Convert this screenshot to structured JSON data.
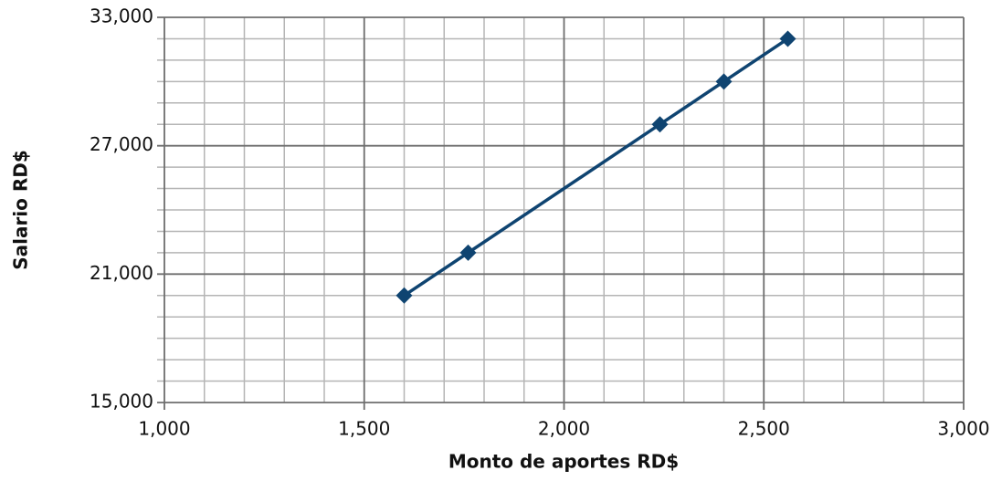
{
  "chart_data": {
    "type": "line",
    "x_label": "Monto de aportes RD$",
    "y_label": "Salario RD$",
    "x": [
      1600,
      1760,
      2240,
      2400,
      2560
    ],
    "series": [
      {
        "color": "#0f4471",
        "values": [
          20000,
          22000,
          28000,
          30000,
          32000
        ]
      }
    ],
    "xlim": [
      1000,
      3000
    ],
    "xticks": [
      {
        "value": 1000,
        "label": "1,000"
      },
      {
        "value": 1500,
        "label": "1,500"
      },
      {
        "value": 2000,
        "label": "2,000"
      },
      {
        "value": 2500,
        "label": "2,500"
      },
      {
        "value": 3000,
        "label": "3,000"
      }
    ],
    "x_minor_ticks": [
      1100,
      1200,
      1300,
      1400,
      1600,
      1700,
      1800,
      1900,
      2100,
      2200,
      2300,
      2400,
      2600,
      2700,
      2800,
      2900
    ],
    "ylim": [
      15000,
      33000
    ],
    "yticks": [
      {
        "value": 15000,
        "label": "15,000"
      },
      {
        "value": 21000,
        "label": "21,000"
      },
      {
        "value": 27000,
        "label": "27,000"
      },
      {
        "value": 33000,
        "label": "33,000"
      }
    ],
    "y_minor_ticks": [
      16000,
      17000,
      18000,
      19000,
      20000,
      22000,
      23000,
      24000,
      25000,
      26000,
      28000,
      29000,
      30000,
      31000,
      32000
    ],
    "grid": true
  }
}
